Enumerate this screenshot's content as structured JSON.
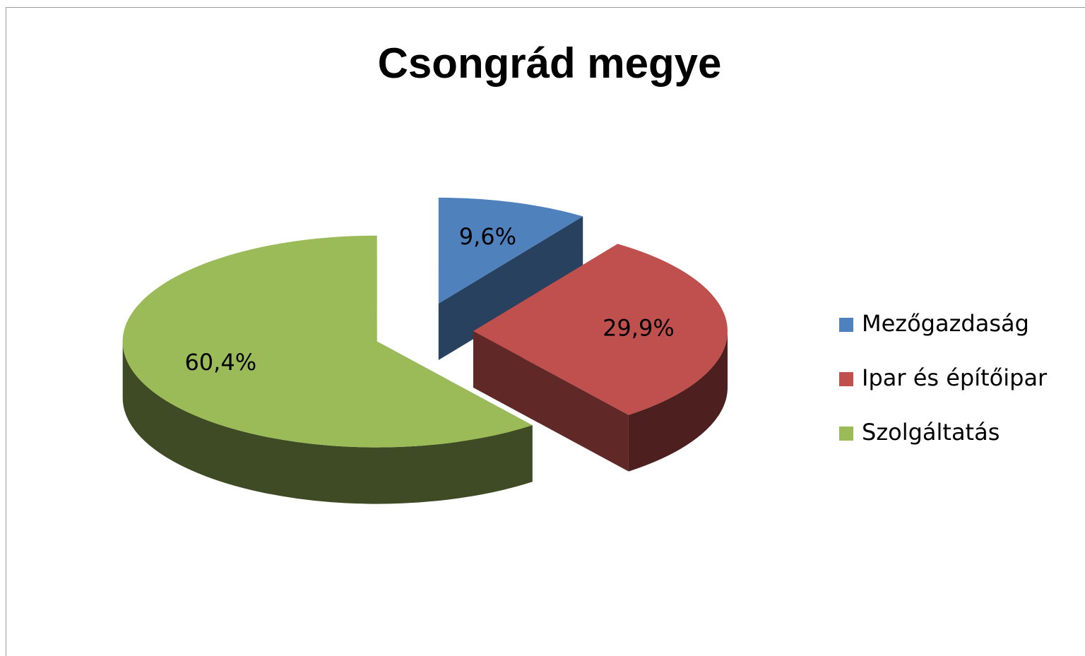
{
  "chart_data": {
    "type": "pie",
    "title": "Csongrád megye",
    "categories": [
      "Mezőgazdaság",
      "Ipar és építőipar",
      "Szolgáltatás"
    ],
    "values": [
      9.6,
      29.9,
      60.4
    ],
    "value_labels": [
      "9,6%",
      "29,9%",
      "60,4%"
    ],
    "colors": [
      "#4f81bd",
      "#c0504d",
      "#9bbb59"
    ],
    "legend": "right"
  }
}
